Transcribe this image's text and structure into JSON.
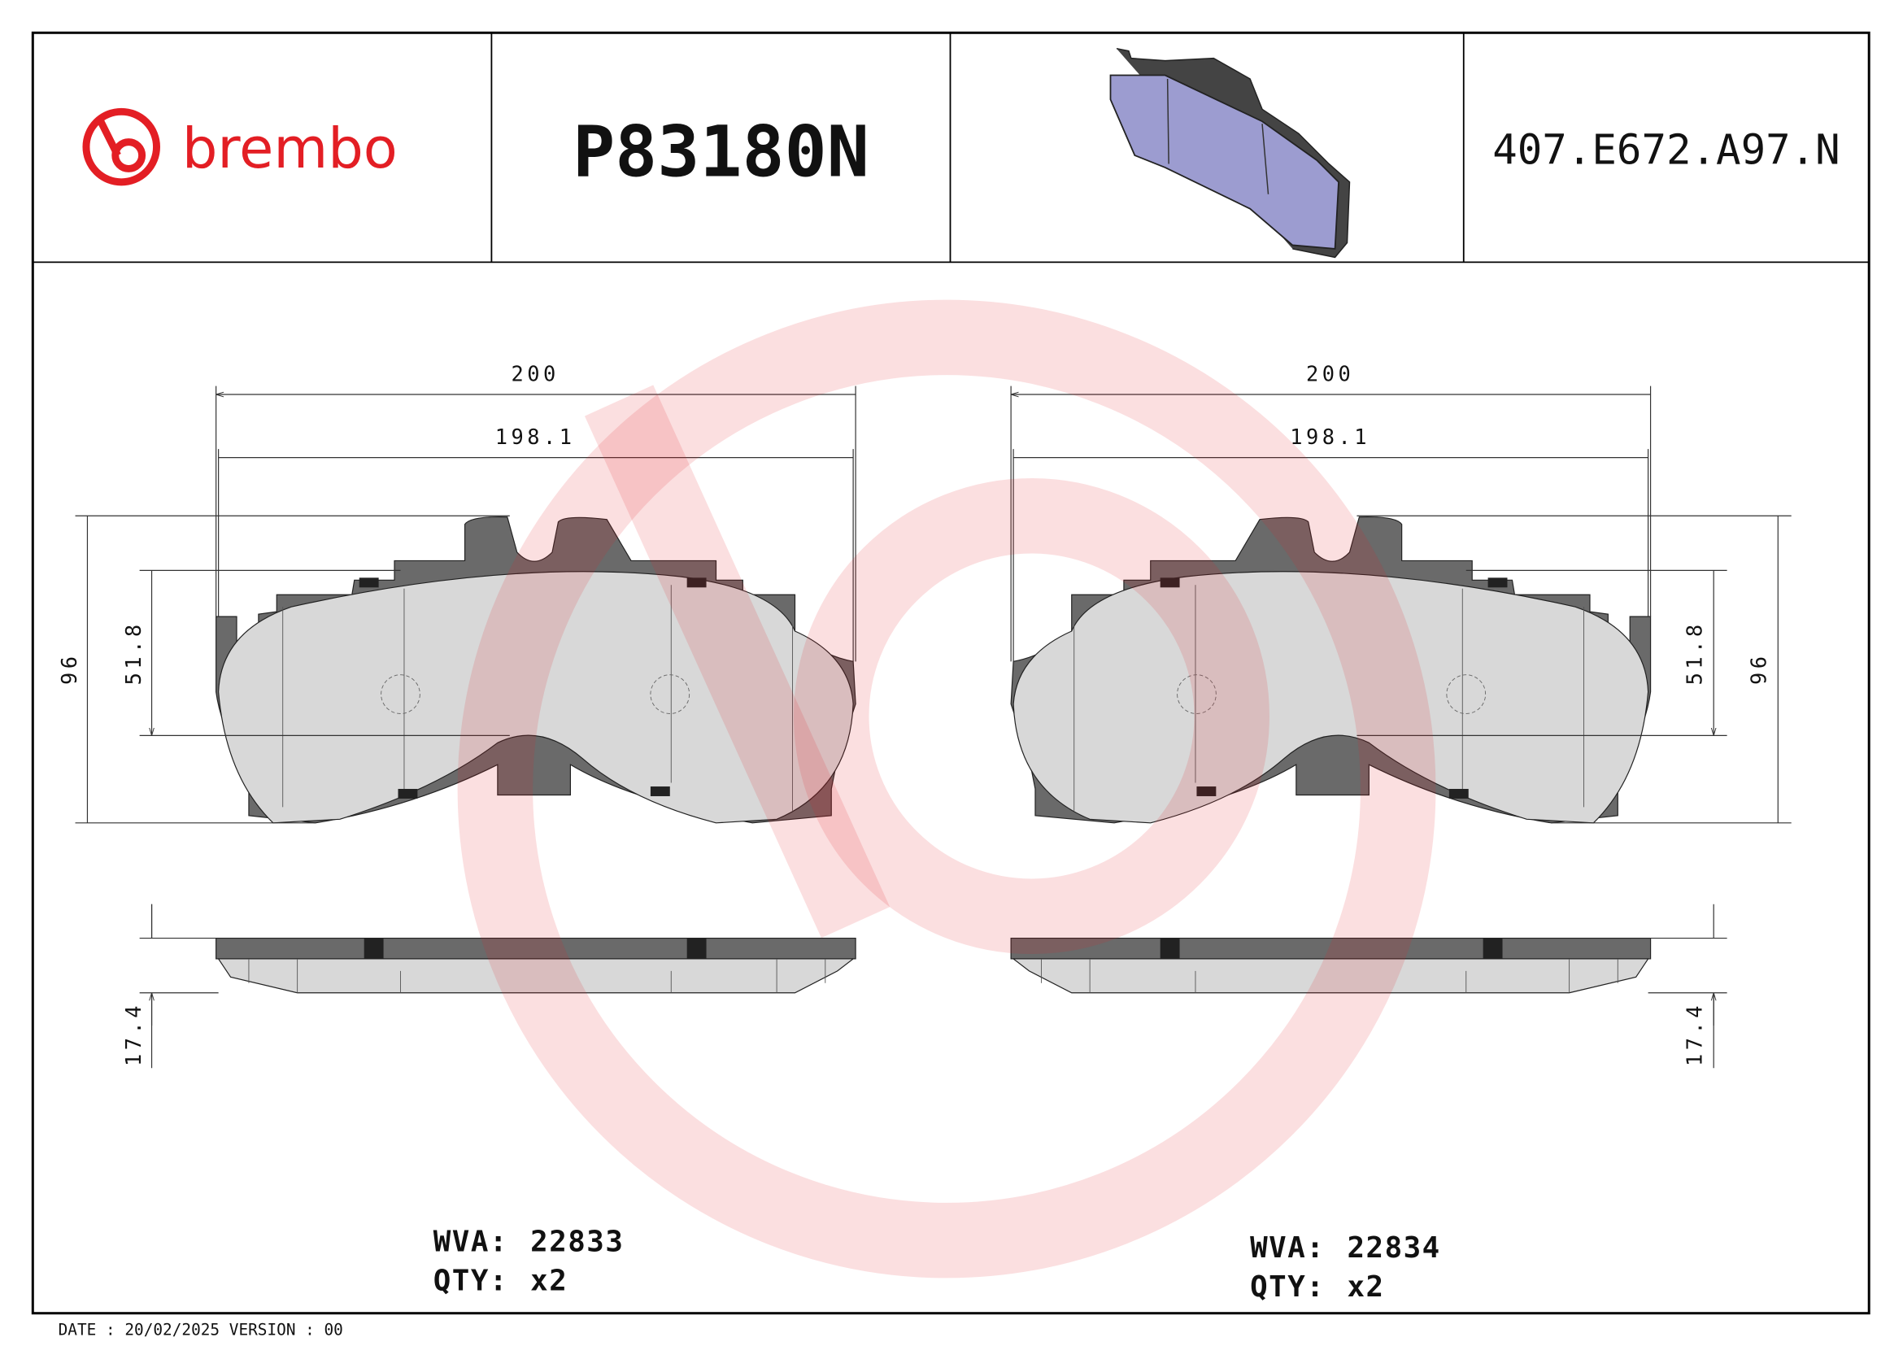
{
  "header": {
    "brand": "brembo",
    "part_number": "P83180N",
    "code": "407.E672.A97.N"
  },
  "drawings": [
    {
      "width": "200",
      "inner_width": "198.1",
      "height": "96",
      "inner_height": "51.8",
      "thickness": "17.4",
      "wva_label": "WVA:",
      "wva": "22833",
      "qty_label": "QTY:",
      "qty": "x2"
    },
    {
      "width": "200",
      "inner_width": "198.1",
      "height": "96",
      "inner_height": "51.8",
      "thickness": "17.4",
      "wva_label": "WVA:",
      "wva": "22834",
      "qty_label": "QTY:",
      "qty": "x2"
    }
  ],
  "footer": "DATE : 20/02/2025 VERSION : 00"
}
